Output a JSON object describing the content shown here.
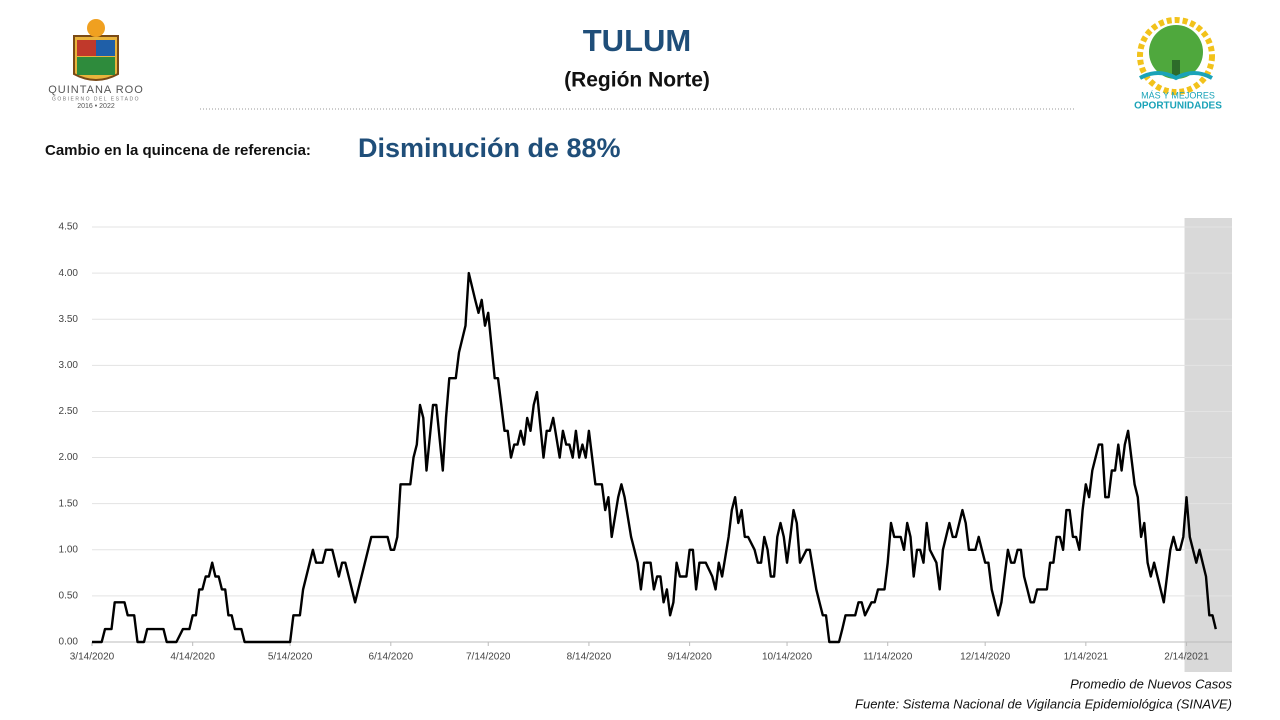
{
  "header": {
    "title": "TULUM",
    "subtitle": "(Región Norte)",
    "change_label": "Cambio en la quincena de referencia:",
    "change_value": "Disminución de 88%"
  },
  "logos": {
    "left": {
      "name": "QUINTANA ROO",
      "sub": "GOBIERNO DEL ESTADO",
      "years": "2016 • 2022"
    },
    "right": {
      "line1": "MÁS Y MEJORES",
      "line2": "OPORTUNIDADES"
    }
  },
  "chart_data": {
    "type": "line",
    "color": "#000000",
    "grid": true,
    "xlim": [
      "3/14/2020",
      "2/28/2021"
    ],
    "highlight": [
      "2/14/2021",
      "2/28/2021"
    ],
    "xticks": [
      "3/14/2020",
      "4/14/2020",
      "5/14/2020",
      "6/14/2020",
      "7/14/2020",
      "8/14/2020",
      "9/14/2020",
      "10/14/2020",
      "11/14/2020",
      "12/14/2020",
      "1/14/2021",
      "2/14/2021"
    ],
    "ylim": [
      0,
      4.5
    ],
    "yticks": [
      {
        "value": 0,
        "label": "0.00"
      },
      {
        "value": 0.5,
        "label": "0.50"
      },
      {
        "value": 1,
        "label": "1.00"
      },
      {
        "value": 1.5,
        "label": "1.50"
      },
      {
        "value": 2,
        "label": "2.00"
      },
      {
        "value": 2.5,
        "label": "2.50"
      },
      {
        "value": 3,
        "label": "3.00"
      },
      {
        "value": 3.5,
        "label": "3.50"
      },
      {
        "value": 4,
        "label": "4.00"
      },
      {
        "value": 4.5,
        "label": "4.50"
      }
    ],
    "x": [
      "3/14/2020",
      "3/17/2020",
      "3/18/2020",
      "3/20/2020",
      "3/21/2020",
      "3/24/2020",
      "3/25/2020",
      "3/27/2020",
      "3/28/2020",
      "3/30/2020",
      "3/31/2020",
      "4/5/2020",
      "4/6/2020",
      "4/9/2020",
      "4/11/2020",
      "4/13/2020",
      "4/14/2020",
      "4/15/2020",
      "4/16/2020",
      "4/17/2020",
      "4/18/2020",
      "4/19/2020",
      "4/20/2020",
      "4/21/2020",
      "4/22/2020",
      "4/23/2020",
      "4/24/2020",
      "4/25/2020",
      "4/26/2020",
      "4/27/2020",
      "4/29/2020",
      "4/30/2020",
      "5/14/2020",
      "5/15/2020",
      "5/17/2020",
      "5/18/2020",
      "5/21/2020",
      "5/22/2020",
      "5/24/2020",
      "5/25/2020",
      "5/27/2020",
      "5/29/2020",
      "5/30/2020",
      "5/31/2020",
      "6/3/2020",
      "6/7/2020",
      "6/8/2020",
      "6/13/2020",
      "6/14/2020",
      "6/15/2020",
      "6/16/2020",
      "6/17/2020",
      "6/20/2020",
      "6/21/2020",
      "6/22/2020",
      "6/23/2020",
      "6/24/2020",
      "6/25/2020",
      "6/27/2020",
      "6/28/2020",
      "6/30/2020",
      "7/1/2020",
      "7/2/2020",
      "7/4/2020",
      "7/5/2020",
      "7/7/2020",
      "7/8/2020",
      "7/10/2020",
      "7/11/2020",
      "7/12/2020",
      "7/13/2020",
      "7/14/2020",
      "7/16/2020",
      "7/17/2020",
      "7/19/2020",
      "7/20/2020",
      "7/21/2020",
      "7/22/2020",
      "7/23/2020",
      "7/24/2020",
      "7/25/2020",
      "7/26/2020",
      "7/27/2020",
      "7/28/2020",
      "7/29/2020",
      "7/31/2020",
      "8/1/2020",
      "8/2/2020",
      "8/3/2020",
      "8/5/2020",
      "8/6/2020",
      "8/7/2020",
      "8/8/2020",
      "8/9/2020",
      "8/10/2020",
      "8/11/2020",
      "8/12/2020",
      "8/13/2020",
      "8/14/2020",
      "8/16/2020",
      "8/18/2020",
      "8/19/2020",
      "8/20/2020",
      "8/21/2020",
      "8/23/2020",
      "8/24/2020",
      "8/25/2020",
      "8/27/2020",
      "8/28/2020",
      "8/29/2020",
      "8/30/2020",
      "8/31/2020",
      "9/2/2020",
      "9/3/2020",
      "9/4/2020",
      "9/5/2020",
      "9/6/2020",
      "9/7/2020",
      "9/8/2020",
      "9/9/2020",
      "9/10/2020",
      "9/11/2020",
      "9/13/2020",
      "9/14/2020",
      "9/15/2020",
      "9/16/2020",
      "9/17/2020",
      "9/19/2020",
      "9/21/2020",
      "9/22/2020",
      "9/23/2020",
      "9/24/2020",
      "9/26/2020",
      "9/27/2020",
      "9/28/2020",
      "9/29/2020",
      "9/30/2020",
      "10/1/2020",
      "10/2/2020",
      "10/4/2020",
      "10/5/2020",
      "10/6/2020",
      "10/7/2020",
      "10/8/2020",
      "10/9/2020",
      "10/10/2020",
      "10/11/2020",
      "10/12/2020",
      "10/13/2020",
      "10/14/2020",
      "10/15/2020",
      "10/16/2020",
      "10/17/2020",
      "10/18/2020",
      "10/20/2020",
      "10/21/2020",
      "10/23/2020",
      "10/24/2020",
      "10/25/2020",
      "10/26/2020",
      "10/27/2020",
      "10/30/2020",
      "10/31/2020",
      "11/1/2020",
      "11/4/2020",
      "11/5/2020",
      "11/6/2020",
      "11/7/2020",
      "11/9/2020",
      "11/10/2020",
      "11/11/2020",
      "11/13/2020",
      "11/14/2020",
      "11/15/2020",
      "11/16/2020",
      "11/18/2020",
      "11/19/2020",
      "11/20/2020",
      "11/21/2020",
      "11/22/2020",
      "11/23/2020",
      "11/24/2020",
      "11/25/2020",
      "11/26/2020",
      "11/27/2020",
      "11/29/2020",
      "11/30/2020",
      "12/1/2020",
      "12/3/2020",
      "12/4/2020",
      "12/5/2020",
      "12/7/2020",
      "12/8/2020",
      "12/9/2020",
      "12/11/2020",
      "12/12/2020",
      "12/13/2020",
      "12/14/2020",
      "12/15/2020",
      "12/16/2020",
      "12/17/2020",
      "12/18/2020",
      "12/19/2020",
      "12/21/2020",
      "12/22/2020",
      "12/23/2020",
      "12/24/2020",
      "12/25/2020",
      "12/26/2020",
      "12/27/2020",
      "12/28/2020",
      "12/29/2020",
      "12/30/2020",
      "1/2/2021",
      "1/3/2021",
      "1/4/2021",
      "1/5/2021",
      "1/6/2021",
      "1/7/2021",
      "1/8/2021",
      "1/9/2021",
      "1/10/2021",
      "1/11/2021",
      "1/12/2021",
      "1/13/2021",
      "1/14/2021",
      "1/15/2021",
      "1/16/2021",
      "1/18/2021",
      "1/19/2021",
      "1/20/2021",
      "1/21/2021",
      "1/22/2021",
      "1/23/2021",
      "1/24/2021",
      "1/25/2021",
      "1/26/2021",
      "1/27/2021",
      "1/29/2021",
      "1/30/2021",
      "1/31/2021",
      "2/1/2021",
      "2/2/2021",
      "2/3/2021",
      "2/4/2021",
      "2/7/2021",
      "2/9/2021",
      "2/10/2021",
      "2/11/2021",
      "2/12/2021",
      "2/13/2021",
      "2/14/2021",
      "2/15/2021",
      "2/17/2021",
      "2/18/2021",
      "2/20/2021",
      "2/21/2021",
      "2/22/2021",
      "2/23/2021"
    ],
    "values": [
      0,
      0,
      0.14,
      0.14,
      0.43,
      0.43,
      0.29,
      0.29,
      0,
      0,
      0.14,
      0.14,
      0,
      0,
      0.14,
      0.14,
      0.29,
      0.29,
      0.57,
      0.57,
      0.71,
      0.71,
      0.86,
      0.71,
      0.71,
      0.57,
      0.57,
      0.29,
      0.29,
      0.14,
      0.14,
      0,
      0,
      0.29,
      0.29,
      0.57,
      1.0,
      0.86,
      0.86,
      1.0,
      1.0,
      0.71,
      0.86,
      0.86,
      0.43,
      1.0,
      1.14,
      1.14,
      1.0,
      1.0,
      1.14,
      1.71,
      1.71,
      2.0,
      2.14,
      2.57,
      2.43,
      1.86,
      2.57,
      2.57,
      1.86,
      2.43,
      2.86,
      2.86,
      3.14,
      3.43,
      4.0,
      3.71,
      3.57,
      3.71,
      3.43,
      3.57,
      2.86,
      2.86,
      2.29,
      2.29,
      2.0,
      2.14,
      2.14,
      2.29,
      2.14,
      2.43,
      2.29,
      2.57,
      2.71,
      2.0,
      2.29,
      2.29,
      2.43,
      2.0,
      2.29,
      2.14,
      2.14,
      2.0,
      2.29,
      2.0,
      2.14,
      2.0,
      2.29,
      1.71,
      1.71,
      1.43,
      1.57,
      1.14,
      1.57,
      1.71,
      1.57,
      1.14,
      1.0,
      0.86,
      0.57,
      0.86,
      0.86,
      0.57,
      0.71,
      0.71,
      0.43,
      0.57,
      0.29,
      0.43,
      0.86,
      0.71,
      0.71,
      1.0,
      1.0,
      0.57,
      0.86,
      0.86,
      0.71,
      0.57,
      0.86,
      0.71,
      1.14,
      1.43,
      1.57,
      1.29,
      1.43,
      1.14,
      1.14,
      1.0,
      0.86,
      0.86,
      1.14,
      1.0,
      0.71,
      0.71,
      1.14,
      1.29,
      1.14,
      0.86,
      1.14,
      1.43,
      1.29,
      0.86,
      1.0,
      1.0,
      0.57,
      0.43,
      0.29,
      0.29,
      0,
      0,
      0.14,
      0.29,
      0.29,
      0.43,
      0.43,
      0.29,
      0.43,
      0.43,
      0.57,
      0.57,
      0.86,
      1.29,
      1.14,
      1.14,
      1.0,
      1.29,
      1.14,
      0.71,
      1.0,
      1.0,
      0.86,
      1.29,
      1.0,
      0.86,
      0.57,
      1.0,
      1.29,
      1.14,
      1.14,
      1.43,
      1.29,
      1.0,
      1.0,
      1.14,
      1.0,
      0.86,
      0.86,
      0.57,
      0.43,
      0.29,
      0.43,
      1.0,
      0.86,
      0.86,
      1.0,
      1.0,
      0.71,
      0.57,
      0.43,
      0.43,
      0.57,
      0.57,
      0.86,
      0.86,
      1.14,
      1.14,
      1.0,
      1.43,
      1.43,
      1.14,
      1.14,
      1.0,
      1.43,
      1.71,
      1.57,
      1.86,
      2.14,
      2.14,
      1.57,
      1.57,
      1.86,
      1.86,
      2.14,
      1.86,
      2.14,
      2.29,
      1.71,
      1.57,
      1.14,
      1.29,
      0.86,
      0.71,
      0.86,
      0.43,
      1.0,
      1.14,
      1.0,
      1.0,
      1.14,
      1.57,
      1.14,
      0.86,
      1.0,
      0.71,
      0.29,
      0.29,
      0.14
    ]
  },
  "footer": {
    "caption": "Promedio de Nuevos Casos",
    "source": "Fuente: Sistema Nacional de Vigilancia Epidemiológica (SINAVE)"
  }
}
